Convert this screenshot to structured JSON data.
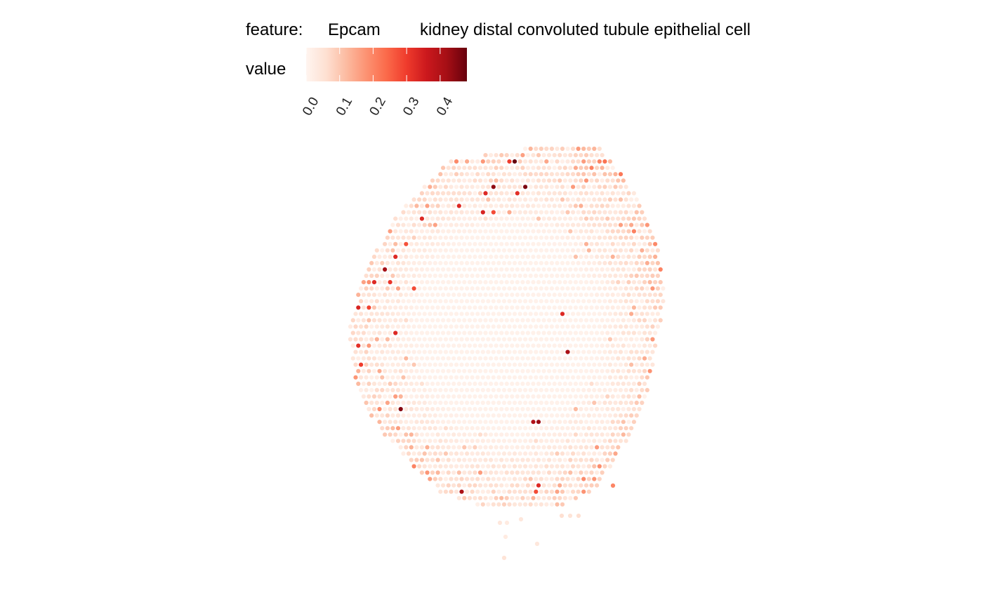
{
  "chart_data": {
    "type": "scatter",
    "title": "",
    "xlabel": "",
    "ylabel": "",
    "grid": false,
    "legend": {
      "position": "top",
      "feature_label": "feature:",
      "feature_value": "Epcam",
      "cell_type": "kidney distal convoluted tubule epithelial cell",
      "colorbar_title": "value",
      "colorbar_ticks": [
        "0.0",
        "0.1",
        "0.2",
        "0.3",
        "0.4"
      ],
      "colorbar_range": [
        0,
        0.48
      ],
      "palette": [
        "#fff5f0",
        "#fee0d2",
        "#fcbba1",
        "#fc9272",
        "#fb6a4a",
        "#ef3b2c",
        "#cb181d",
        "#a50f15",
        "#67000d"
      ]
    },
    "spot_grid": {
      "description": "hexagonal spatial spot array (Visium-like tissue section)",
      "rows": 66,
      "columns": 80,
      "value_range": [
        0,
        0.48
      ]
    },
    "highlighted_spots": [
      {
        "col": 51,
        "row": 2,
        "value": 0.48
      },
      {
        "col": 50,
        "row": 2,
        "value": 0.3
      },
      {
        "col": 47,
        "row": 6,
        "value": 0.44
      },
      {
        "col": 53,
        "row": 6,
        "value": 0.46
      },
      {
        "col": 45,
        "row": 7,
        "value": 0.33
      },
      {
        "col": 51,
        "row": 7,
        "value": 0.32
      },
      {
        "col": 40,
        "row": 9,
        "value": 0.33
      },
      {
        "col": 45,
        "row": 10,
        "value": 0.34
      },
      {
        "col": 47,
        "row": 10,
        "value": 0.28
      },
      {
        "col": 33,
        "row": 11,
        "value": 0.33
      },
      {
        "col": 30,
        "row": 15,
        "value": 0.27
      },
      {
        "col": 28,
        "row": 17,
        "value": 0.33
      },
      {
        "col": 26,
        "row": 19,
        "value": 0.42
      },
      {
        "col": 24,
        "row": 21,
        "value": 0.33
      },
      {
        "col": 27,
        "row": 21,
        "value": 0.31
      },
      {
        "col": 32,
        "row": 22,
        "value": 0.28
      },
      {
        "col": 21,
        "row": 25,
        "value": 0.34
      },
      {
        "col": 23,
        "row": 25,
        "value": 0.29
      },
      {
        "col": 60,
        "row": 26,
        "value": 0.33
      },
      {
        "col": 28,
        "row": 29,
        "value": 0.33
      },
      {
        "col": 19,
        "row": 30,
        "value": 0.3
      },
      {
        "col": 21,
        "row": 31,
        "value": 0.32
      },
      {
        "col": 20,
        "row": 32,
        "value": 0.33
      },
      {
        "col": 61,
        "row": 32,
        "value": 0.41
      },
      {
        "col": 18,
        "row": 33,
        "value": 0.43
      },
      {
        "col": 22,
        "row": 34,
        "value": 0.3
      },
      {
        "col": 29,
        "row": 41,
        "value": 0.45
      },
      {
        "col": 55,
        "row": 43,
        "value": 0.43
      },
      {
        "col": 54,
        "row": 43,
        "value": 0.4
      },
      {
        "col": 26,
        "row": 46,
        "value": 0.46
      },
      {
        "col": 55,
        "row": 53,
        "value": 0.33
      },
      {
        "col": 41,
        "row": 54,
        "value": 0.41
      },
      {
        "col": 55,
        "row": 54,
        "value": 0.28
      },
      {
        "col": 40,
        "row": 56,
        "value": 0.44
      }
    ]
  }
}
